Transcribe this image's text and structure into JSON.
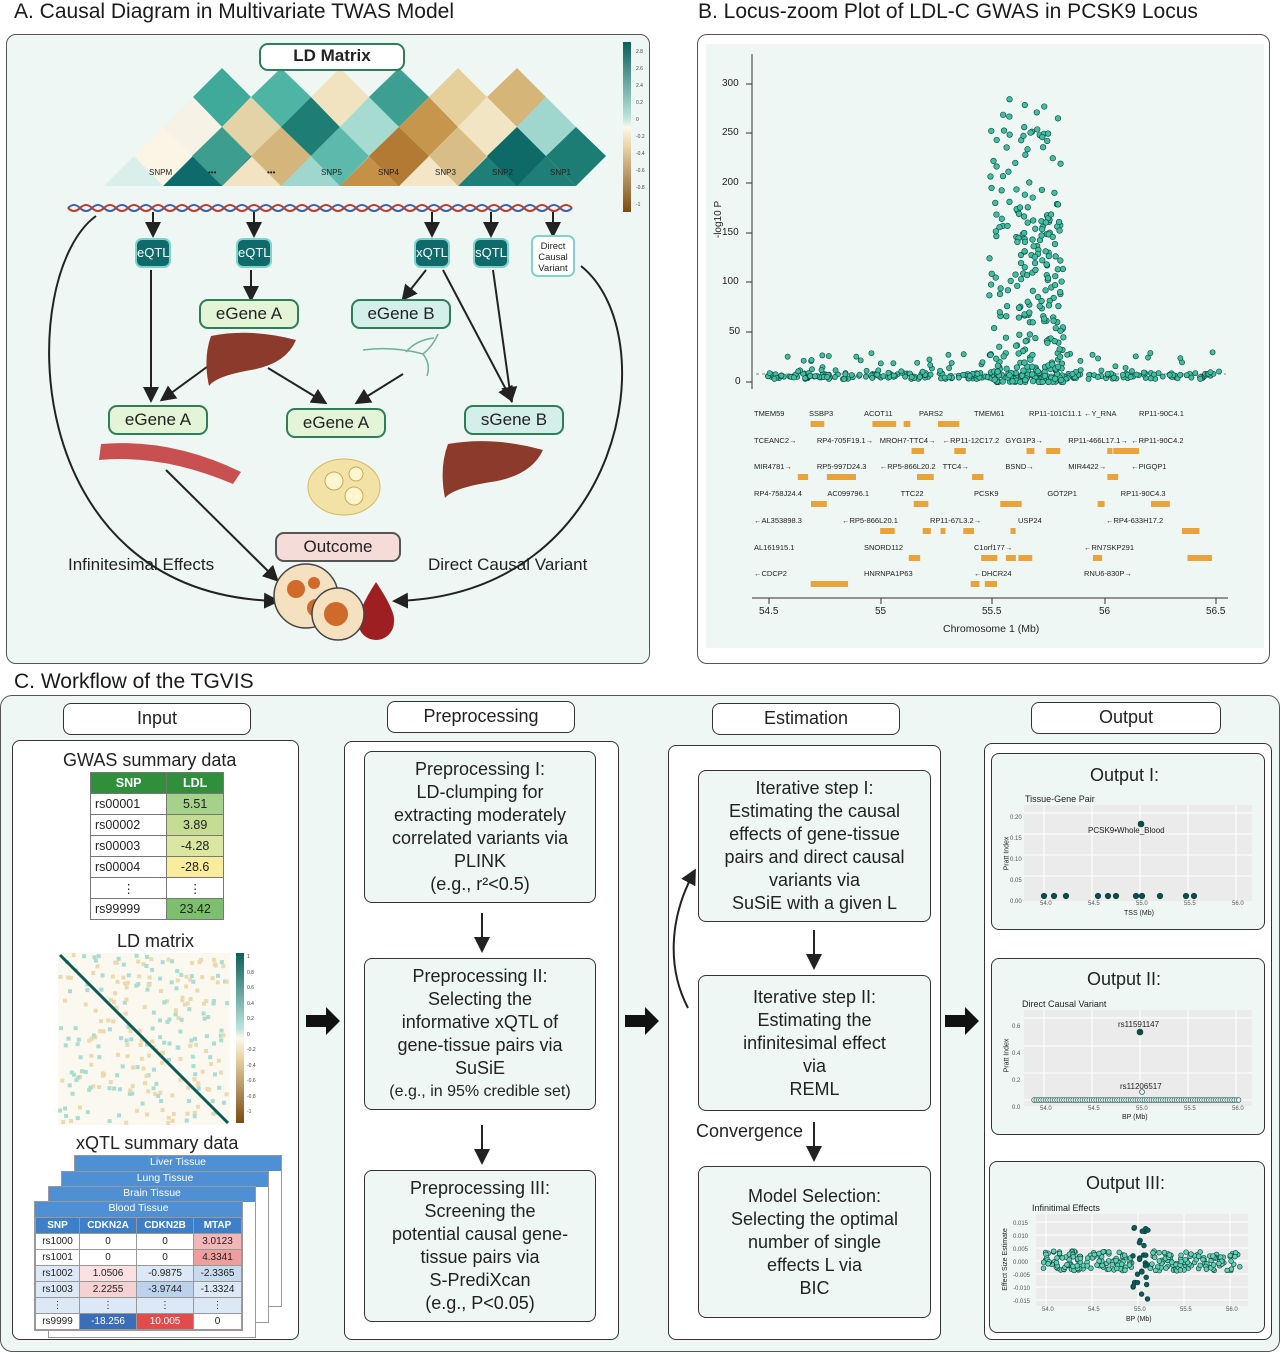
{
  "panelA": {
    "title": "A. Causal Diagram in Multivariate TWAS Model",
    "ld_matrix_label": "LD Matrix",
    "snps": [
      "SNPM",
      "•••",
      "•••",
      "SNP5",
      "SNP4",
      "SNP3",
      "SNP2",
      "SNP1"
    ],
    "colorbar_ticks": [
      "2.8",
      "2.6",
      "2.4",
      "0.2",
      "0",
      "-0.2",
      "-0.4",
      "-0.6",
      "-0.8",
      "-1"
    ],
    "qtls": [
      "eQTL",
      "eQTL",
      "xQTL",
      "sQTL"
    ],
    "direct_variant": [
      "Direct",
      "Causal",
      "Variant"
    ],
    "egene_a_top": "eGene A",
    "egene_b_top": "eGene B",
    "egene_a_left": "eGene A",
    "egene_a_mid": "eGene A",
    "sgene_b": "sGene B",
    "outcome": "Outcome",
    "infinitesimal": "Infinitesimal Effects",
    "direct_causal": "Direct Causal Variant"
  },
  "panelB": {
    "title": "B. Locus-zoom Plot of LDL-C GWAS in PCSK9 Locus",
    "ylabel": "-log10 P",
    "yticks": [
      "300",
      "250",
      "200",
      "150",
      "100",
      "50",
      "0"
    ],
    "xticks": [
      "54.5",
      "55",
      "55.5",
      "56",
      "56.5"
    ],
    "xlabel": "Chromosome 1 (Mb)",
    "genes": [
      [
        "TMEM59",
        "SSBP3",
        "ACOT11",
        "PARS2",
        "TMEM61",
        "RP11-101C11.1",
        "←Y_RNA",
        "RP11-90C4.1"
      ],
      [
        "TCEANC2→",
        "RP4-705F19.1→",
        "MROH7-TTC4→",
        "←RP11-12C17.2",
        "GYG1P3→",
        "RP11-466L17.1→",
        "←RP11-90C4.2"
      ],
      [
        "MIR4781→",
        "RP5-997D24.3",
        "←RP5-866L20.2",
        "TTC4→",
        "BSND→",
        "MIR4422→",
        "←PIGQP1"
      ],
      [
        "RP4-758J24.4",
        "AC099796.1",
        "TTC22",
        "PCSK9",
        "GOT2P1",
        "RP11-90C4.3"
      ],
      [
        "←AL353898.3",
        "←RP5-866L20.1",
        "RP11-67L3.2→",
        "USP24",
        "←RP4-633H17.2"
      ],
      [
        "AL161915.1",
        "SNORD112",
        "C1orf177→",
        "←RN7SKP291"
      ],
      [
        "←CDCP2",
        "HNRNPA1P63",
        "←DHCR24",
        "RNU6-830P→"
      ]
    ]
  },
  "panelC": {
    "title": "C. Workflow of the TGVIS",
    "headers": [
      "Input",
      "Preprocessing",
      "Estimation",
      "Output"
    ],
    "gwas_title": "GWAS summary data",
    "gwas_cols": [
      "SNP",
      "LDL"
    ],
    "gwas_rows": [
      [
        "rs00001",
        "5.51"
      ],
      [
        "rs00002",
        "3.89"
      ],
      [
        "rs00003",
        "-4.28"
      ],
      [
        "rs00004",
        "-28.6"
      ],
      [
        "⋮",
        "⋮"
      ],
      [
        "rs99999",
        "23.42"
      ]
    ],
    "ld_title": "LD matrix",
    "ld_ticks": [
      "1",
      "0.8",
      "0.6",
      "0.4",
      "0.2",
      "0",
      "-0.2",
      "-0.4",
      "-0.6",
      "-0.8",
      "-1"
    ],
    "xqtl_title": "xQTL summary data",
    "tissues": [
      "Liver Tissue",
      "Lung Tissue",
      "Brain Tissue",
      "Blood Tissue"
    ],
    "xqtl_cols": [
      "SNP",
      "CDKN2A",
      "CDKN2B",
      "MTAP"
    ],
    "xqtl_rows": [
      [
        "rs1000",
        "0",
        "0",
        "3.0123"
      ],
      [
        "rs1001",
        "0",
        "0",
        "4.3341"
      ],
      [
        "rs1002",
        "1.0506",
        "-0.9875",
        "-2.3365"
      ],
      [
        "rs1003",
        "2.2255",
        "-3.9744",
        "-1.3324"
      ],
      [
        "⋮",
        "⋮",
        "⋮",
        "⋮"
      ],
      [
        "rs9999",
        "-18.256",
        "10.005",
        "0"
      ]
    ],
    "pre1": [
      "Preprocessing I:",
      "LD-clumping for",
      "extracting moderately",
      "correlated variants via",
      "PLINK",
      "(e.g., r²<0.5)"
    ],
    "pre2": [
      "Preprocessing II:",
      "Selecting the",
      "informative xQTL of",
      "gene-tissue pairs via",
      "SuSiE",
      "(e.g., in 95% credible set)"
    ],
    "pre3": [
      "Preprocessing III:",
      "Screening the",
      "potential causal gene-",
      "tissue pairs via",
      "S-PrediXcan",
      "(e.g., P<0.05)"
    ],
    "est1": [
      "Iterative step I:",
      "Estimating the causal",
      "effects of gene-tissue",
      "pairs and direct causal",
      "variants via",
      "SuSiE with a given L"
    ],
    "est2": [
      "Iterative step II:",
      "Estimating the",
      "infinitesimal effect",
      "via",
      "REML"
    ],
    "convergence": "Convergence",
    "est3": [
      "Model Selection:",
      "Selecting the optimal",
      "number of single",
      "effects L via",
      "BIC"
    ],
    "out1": {
      "title": "Output I:",
      "sub": "Tissue-Gene Pair",
      "ylabel": "Pratt Index",
      "xlabel": "TSS (Mb)",
      "annot": "PCSK9•Whole_Blood",
      "yticks": [
        "0.20",
        "0.15",
        "0.10",
        "0.05",
        "0.00"
      ],
      "xticks": [
        "54.0",
        "54.5",
        "55.0",
        "55.5",
        "56.0"
      ]
    },
    "out2": {
      "title": "Output II:",
      "sub": "Direct Causal Variant",
      "ylabel": "Pratt Index",
      "xlabel": "BP (Mb)",
      "annot1": "rs11591147",
      "annot2": "rs11206517",
      "yticks": [
        "0.6",
        "0.4",
        "0.2",
        "0.0"
      ],
      "xticks": [
        "54.0",
        "54.5",
        "55.0",
        "55.5",
        "56.0"
      ]
    },
    "out3": {
      "title": "Output III:",
      "sub": "Infinitimal Effects",
      "ylabel": "Effect Size Estimate",
      "xlabel": "BP (Mb)",
      "yticks": [
        "0.015",
        "0.010",
        "0.005",
        "0.000",
        "-0.005",
        "-0.010",
        "-0.015"
      ],
      "xticks": [
        "54.0",
        "54.5",
        "55.0",
        "55.5",
        "56.0"
      ]
    }
  },
  "colors": {
    "teal": "#0f6b6b",
    "panel_bg": "#eef7f3",
    "gene_orange": "#e8a33a",
    "point": "#3fbf9f"
  }
}
